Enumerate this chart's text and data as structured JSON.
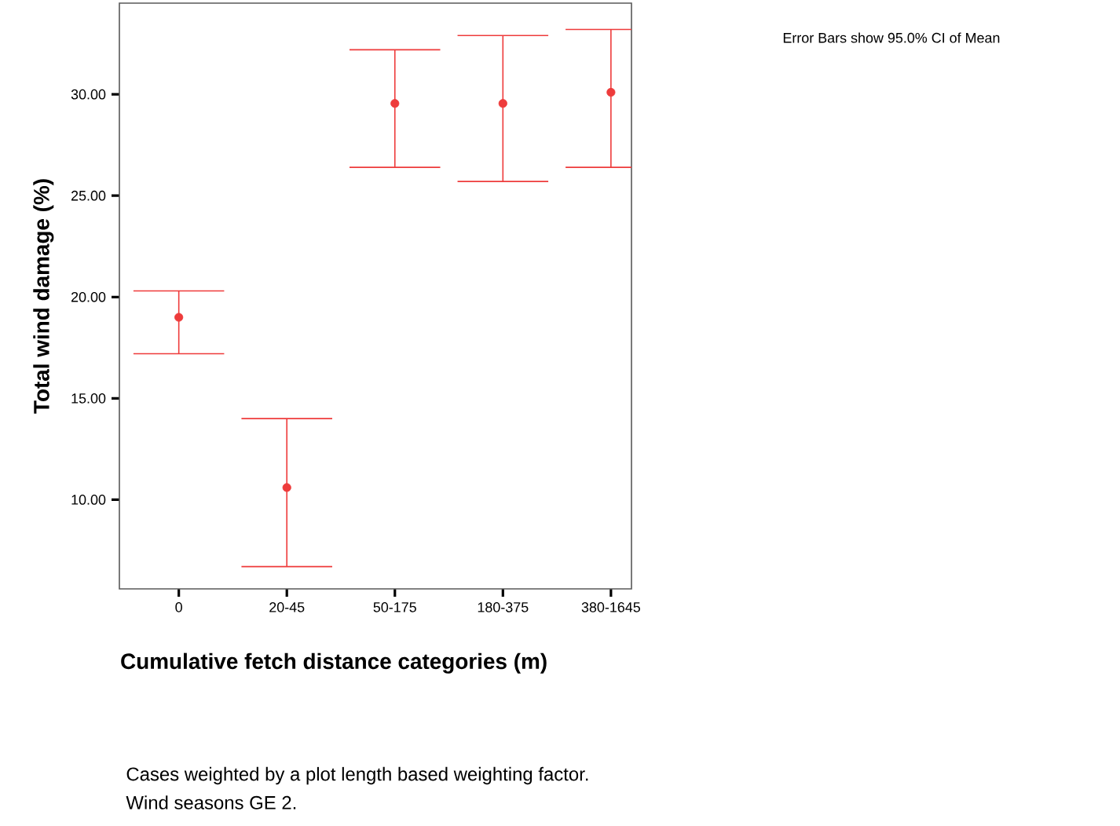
{
  "chart_data": {
    "type": "scatter",
    "xlabel": "Cumulative fetch distance categories (m)",
    "ylabel": "Total wind damage (%)",
    "categories": [
      "0",
      "20-45",
      "50-175",
      "180-375",
      "380-1645"
    ],
    "series": [
      {
        "color": "#ee3b3b",
        "values": [
          19.0,
          10.6,
          29.55,
          29.55,
          30.1
        ],
        "errors": [
          [
            17.2,
            20.3
          ],
          [
            6.7,
            14.0
          ],
          [
            26.4,
            32.2
          ],
          [
            25.7,
            32.9
          ],
          [
            26.4,
            33.2
          ]
        ]
      }
    ],
    "ylim": [
      5.6,
      34.5
    ],
    "yticks": [
      {
        "value": 10,
        "label": "10.00"
      },
      {
        "value": 15,
        "label": "15.00"
      },
      {
        "value": 20,
        "label": "20.00"
      },
      {
        "value": 25,
        "label": "25.00"
      },
      {
        "value": 30,
        "label": "30.00"
      }
    ],
    "marker": "circle",
    "grid": false,
    "annotations": [
      "Error Bars show 95.0% CI of Mean",
      "Cases weighted by a plot length based weighting factor.",
      "Wind seasons GE 2."
    ]
  }
}
